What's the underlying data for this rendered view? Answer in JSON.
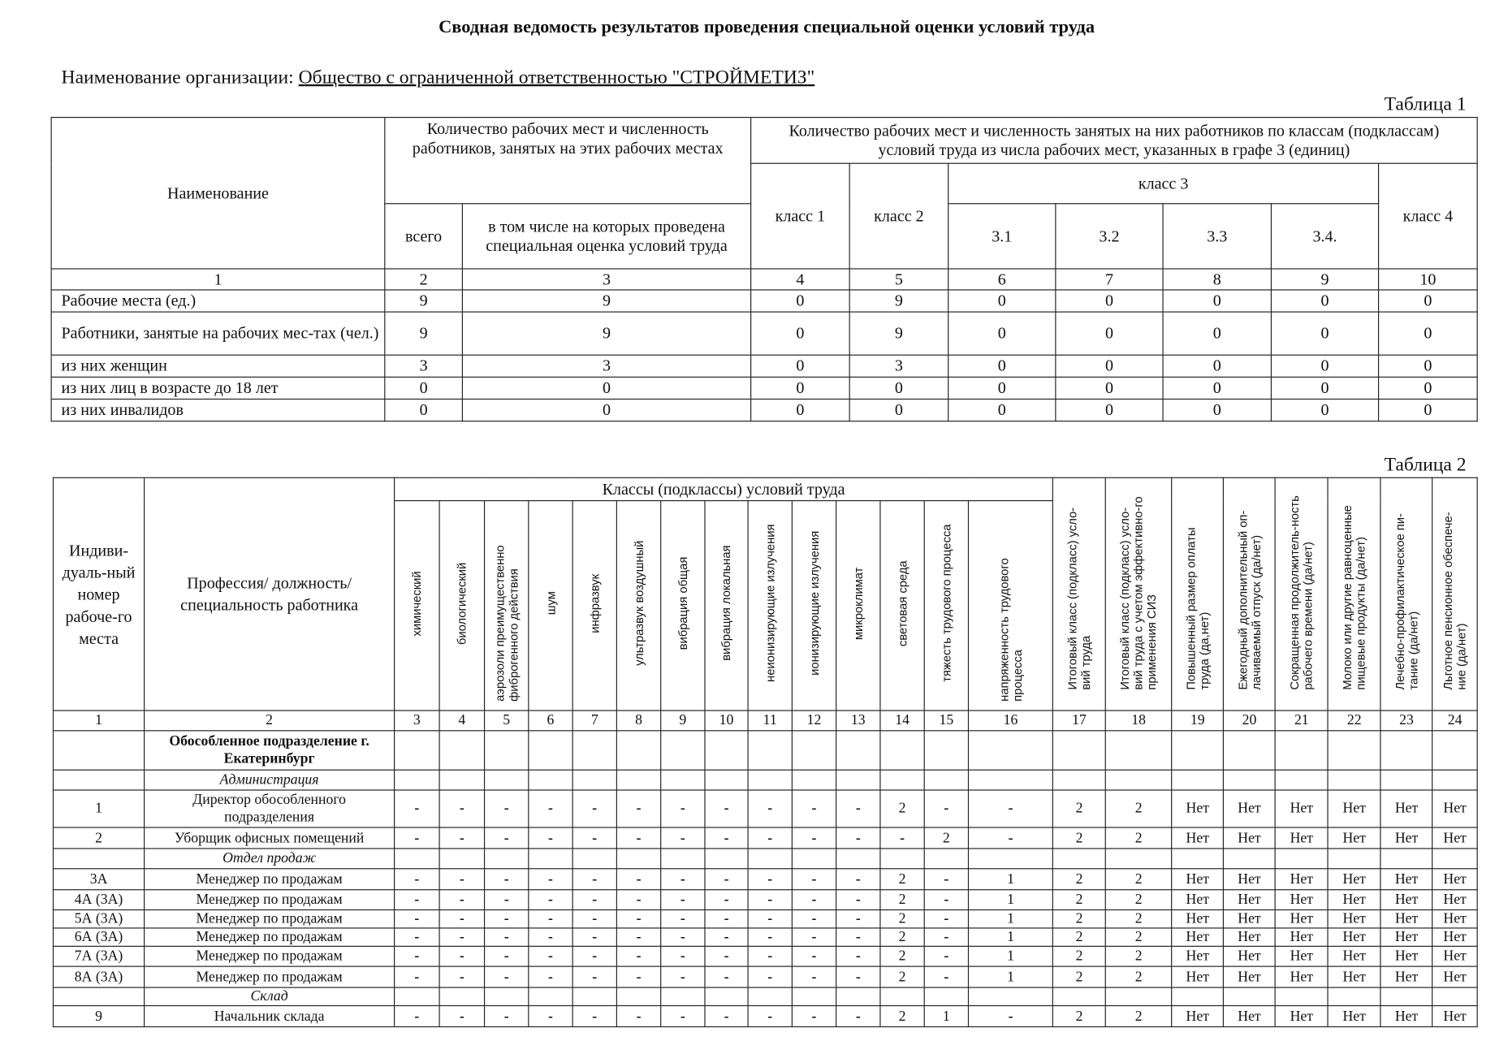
{
  "title": "Сводная ведомость результатов проведения специальной оценки условий труда",
  "organization": {
    "label": "Наименование организации:",
    "value": "Общество с ограниченной ответственностью \"СТРОЙМЕТИЗ\""
  },
  "table1": {
    "caption": "Таблица 1",
    "h_name": "Наименование",
    "h_group1": "Количество рабочих мест и численность работников, занятых на этих рабочих местах",
    "h_group2": "Количество рабочих мест и численность занятых на них работников по классам (подклассам) условий труда из числа рабочих мест, указанных в графе 3 (единиц)",
    "h_total": "всего",
    "h_assessed": "в том числе на которых проведена специальная оценка условий труда",
    "h_class1": "класс 1",
    "h_class2": "класс 2",
    "h_class3": "класс 3",
    "h_31": "3.1",
    "h_32": "3.2",
    "h_33": "3.3",
    "h_34": "3.4.",
    "h_class4": "класс 4",
    "col_numbers": [
      "1",
      "2",
      "3",
      "4",
      "5",
      "6",
      "7",
      "8",
      "9",
      "10"
    ],
    "rows": [
      {
        "name": "Рабочие места (ед.)",
        "values": [
          "9",
          "9",
          "0",
          "9",
          "0",
          "0",
          "0",
          "0",
          "0"
        ]
      },
      {
        "name": "Работники, занятые на рабочих мес-тах (чел.)",
        "values": [
          "9",
          "9",
          "0",
          "9",
          "0",
          "0",
          "0",
          "0",
          "0"
        ]
      },
      {
        "name": "из них женщин",
        "values": [
          "3",
          "3",
          "0",
          "3",
          "0",
          "0",
          "0",
          "0",
          "0"
        ]
      },
      {
        "name": "из них лиц в возрасте до 18 лет",
        "values": [
          "0",
          "0",
          "0",
          "0",
          "0",
          "0",
          "0",
          "0",
          "0"
        ]
      },
      {
        "name": "из них инвалидов",
        "values": [
          "0",
          "0",
          "0",
          "0",
          "0",
          "0",
          "0",
          "0",
          "0"
        ]
      }
    ]
  },
  "table2": {
    "caption": "Таблица 2",
    "h_id": "Индиви-дуаль-ный номер рабоче-го места",
    "h_prof": "Профессия/ должность/ специальность работника",
    "h_classes": "Классы (подклассы) условий труда",
    "factors": [
      "химический",
      "биологический",
      "аэрозоли преимущественно фиброгенного действия",
      "шум",
      "инфразвук",
      "ультразвук воздушный",
      "вибрация общая",
      "вибрация локальная",
      "неионизирующие излучения",
      "ионизирующие излучения",
      "микроклимат",
      "световая среда",
      "тяжесть трудового процесса",
      "напряженность трудового процесса"
    ],
    "extra": [
      "Итоговый класс (подкласс) усло-вий труда",
      "Итоговый класс (подкласс) усло-вий труда с учетом эффективно-го применения СИЗ",
      "Повышенный размер оплаты труда (да,нет)",
      "Ежегодный дополнительный оп-лачиваемый отпуск (да/нет)",
      "Сокращенная продолжитель-ность рабочего времени (да/нет)",
      "Молоко или другие равноценные пищевые продукты (да/нет)",
      "Лечебно-профилактическое пи-тание  (да/нет)",
      "Льготное пенсионное обеспече-ние (да/нет)"
    ],
    "col_numbers": [
      "1",
      "2",
      "3",
      "4",
      "5",
      "6",
      "7",
      "8",
      "9",
      "10",
      "11",
      "12",
      "13",
      "14",
      "15",
      "16",
      "17",
      "18",
      "19",
      "20",
      "21",
      "22",
      "23",
      "24"
    ],
    "rows": [
      {
        "type": "unit",
        "name": "Обособленное подразделение г. Екатеринбург"
      },
      {
        "type": "section",
        "name": "Администрация"
      },
      {
        "type": "job",
        "id": "1",
        "name": "Директор обособленного подразделения",
        "values": [
          "-",
          "-",
          "-",
          "-",
          "-",
          "-",
          "-",
          "-",
          "-",
          "-",
          "-",
          "2",
          "-",
          "-",
          "2",
          "2",
          "Нет",
          "Нет",
          "Нет",
          "Нет",
          "Нет",
          "Нет"
        ]
      },
      {
        "type": "job",
        "id": "2",
        "name": "Уборщик офисных помещений",
        "values": [
          "-",
          "-",
          "-",
          "-",
          "-",
          "-",
          "-",
          "-",
          "-",
          "-",
          "-",
          "-",
          "2",
          "-",
          "2",
          "2",
          "Нет",
          "Нет",
          "Нет",
          "Нет",
          "Нет",
          "Нет"
        ]
      },
      {
        "type": "section",
        "name": "Отдел продаж"
      },
      {
        "type": "job",
        "id": "3А",
        "name": "Менеджер по продажам",
        "values": [
          "-",
          "-",
          "-",
          "-",
          "-",
          "-",
          "-",
          "-",
          "-",
          "-",
          "-",
          "2",
          "-",
          "1",
          "2",
          "2",
          "Нет",
          "Нет",
          "Нет",
          "Нет",
          "Нет",
          "Нет"
        ]
      },
      {
        "type": "job",
        "id": "4А (3А)",
        "name": "Менеджер по продажам",
        "values": [
          "-",
          "-",
          "-",
          "-",
          "-",
          "-",
          "-",
          "-",
          "-",
          "-",
          "-",
          "2",
          "-",
          "1",
          "2",
          "2",
          "Нет",
          "Нет",
          "Нет",
          "Нет",
          "Нет",
          "Нет"
        ]
      },
      {
        "type": "job",
        "id": "5А (3А)",
        "name": "Менеджер по продажам",
        "values": [
          "-",
          "-",
          "-",
          "-",
          "-",
          "-",
          "-",
          "-",
          "-",
          "-",
          "-",
          "2",
          "-",
          "1",
          "2",
          "2",
          "Нет",
          "Нет",
          "Нет",
          "Нет",
          "Нет",
          "Нет"
        ]
      },
      {
        "type": "job",
        "id": "6А (3А)",
        "name": "Менеджер по продажам",
        "values": [
          "-",
          "-",
          "-",
          "-",
          "-",
          "-",
          "-",
          "-",
          "-",
          "-",
          "-",
          "2",
          "-",
          "1",
          "2",
          "2",
          "Нет",
          "Нет",
          "Нет",
          "Нет",
          "Нет",
          "Нет"
        ]
      },
      {
        "type": "job",
        "id": "7А (3А)",
        "name": "Менеджер по продажам",
        "values": [
          "-",
          "-",
          "-",
          "-",
          "-",
          "-",
          "-",
          "-",
          "-",
          "-",
          "-",
          "2",
          "-",
          "1",
          "2",
          "2",
          "Нет",
          "Нет",
          "Нет",
          "Нет",
          "Нет",
          "Нет"
        ]
      },
      {
        "type": "job",
        "id": "8А (3А)",
        "name": "Менеджер по продажам",
        "values": [
          "-",
          "-",
          "-",
          "-",
          "-",
          "-",
          "-",
          "-",
          "-",
          "-",
          "-",
          "2",
          "-",
          "1",
          "2",
          "2",
          "Нет",
          "Нет",
          "Нет",
          "Нет",
          "Нет",
          "Нет"
        ]
      },
      {
        "type": "section",
        "name": "Склад"
      },
      {
        "type": "job",
        "id": "9",
        "name": "Начальник склада",
        "values": [
          "-",
          "-",
          "-",
          "-",
          "-",
          "-",
          "-",
          "-",
          "-",
          "-",
          "-",
          "2",
          "1",
          "-",
          "2",
          "2",
          "Нет",
          "Нет",
          "Нет",
          "Нет",
          "Нет",
          "Нет"
        ]
      }
    ]
  }
}
